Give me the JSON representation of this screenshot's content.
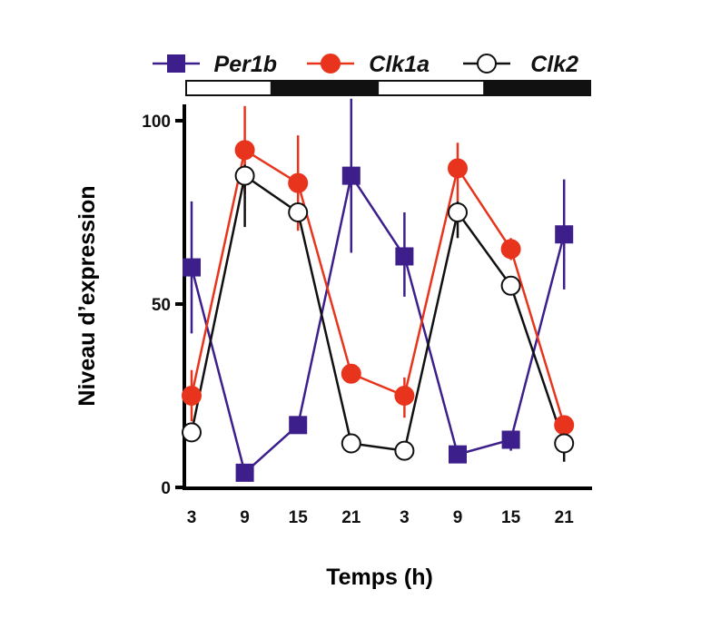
{
  "chart_data": {
    "type": "line",
    "title": "",
    "xlabel": "Temps (h)",
    "ylabel": "Niveau d’expression",
    "categories": [
      "3",
      "9",
      "15",
      "21",
      "3",
      "9",
      "15",
      "21"
    ],
    "hours": [
      3,
      9,
      15,
      21,
      27,
      33,
      39,
      45
    ],
    "ylim": [
      0,
      100
    ],
    "yticks": [
      0,
      50,
      100
    ],
    "grid": false,
    "legend_position": "top",
    "light_dark": [
      {
        "phase": "light",
        "from": 0,
        "to": 12
      },
      {
        "phase": "dark",
        "from": 12,
        "to": 24
      },
      {
        "phase": "light",
        "from": 24,
        "to": 36
      },
      {
        "phase": "dark",
        "from": 36,
        "to": 48
      }
    ],
    "series": [
      {
        "name": "Per1b",
        "color": "#3d1f8c",
        "marker": "square",
        "fill": true,
        "values": [
          60,
          4,
          17,
          85,
          63,
          9,
          13,
          69
        ],
        "errors": [
          [
            42,
            78
          ],
          null,
          null,
          [
            64,
            106
          ],
          [
            52,
            75
          ],
          null,
          [
            10,
            15
          ],
          [
            54,
            84
          ]
        ]
      },
      {
        "name": "Clk1a",
        "color": "#e8341c",
        "marker": "circle",
        "fill": true,
        "values": [
          25,
          92,
          83,
          31,
          25,
          87,
          65,
          17
        ],
        "errors": [
          [
            18,
            32
          ],
          [
            80,
            104
          ],
          [
            70,
            96
          ],
          null,
          [
            19,
            30
          ],
          [
            78,
            94
          ],
          [
            62,
            68
          ],
          null
        ]
      },
      {
        "name": "Clk2",
        "color": "#111111",
        "marker": "circle",
        "fill": false,
        "values": [
          15,
          85,
          75,
          12,
          10,
          75,
          55,
          12
        ],
        "errors": [
          null,
          [
            71,
            88
          ],
          null,
          null,
          null,
          [
            68,
            78
          ],
          null,
          [
            7,
            13
          ]
        ]
      }
    ]
  }
}
